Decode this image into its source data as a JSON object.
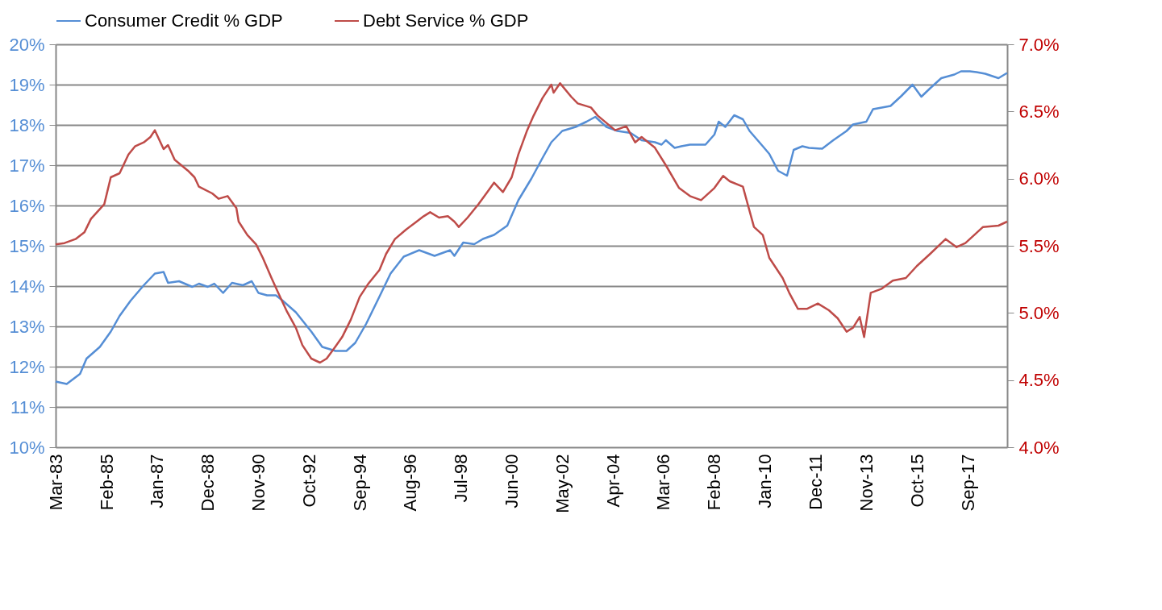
{
  "chart_data": {
    "type": "line",
    "legend": "top",
    "grid": "y",
    "line_style": "solid",
    "marker": "none",
    "xlim": [
      "1983-03",
      "2019-03"
    ],
    "xticks": [
      {
        "value": "1983-03",
        "label": "Mar-83"
      },
      {
        "value": "1985-02",
        "label": "Feb-85"
      },
      {
        "value": "1987-01",
        "label": "Jan-87"
      },
      {
        "value": "1988-12",
        "label": "Dec-88"
      },
      {
        "value": "1990-11",
        "label": "Nov-90"
      },
      {
        "value": "1992-10",
        "label": "Oct-92"
      },
      {
        "value": "1994-09",
        "label": "Sep-94"
      },
      {
        "value": "1996-08",
        "label": "Aug-96"
      },
      {
        "value": "1998-07",
        "label": "Jul-98"
      },
      {
        "value": "2000-06",
        "label": "Jun-00"
      },
      {
        "value": "2002-05",
        "label": "May-02"
      },
      {
        "value": "2004-04",
        "label": "Apr-04"
      },
      {
        "value": "2006-03",
        "label": "Mar-06"
      },
      {
        "value": "2008-02",
        "label": "Feb-08"
      },
      {
        "value": "2010-01",
        "label": "Jan-10"
      },
      {
        "value": "2011-12",
        "label": "Dec-11"
      },
      {
        "value": "2013-11",
        "label": "Nov-13"
      },
      {
        "value": "2015-10",
        "label": "Oct-15"
      },
      {
        "value": "2017-09",
        "label": "Sep-17"
      }
    ],
    "ylim": [
      10,
      20
    ],
    "yticks": [
      {
        "value": 10,
        "label": "10%"
      },
      {
        "value": 11,
        "label": "11%"
      },
      {
        "value": 12,
        "label": "12%"
      },
      {
        "value": 13,
        "label": "13%"
      },
      {
        "value": 14,
        "label": "14%"
      },
      {
        "value": 15,
        "label": "15%"
      },
      {
        "value": 16,
        "label": "16%"
      },
      {
        "value": 17,
        "label": "17%"
      },
      {
        "value": 18,
        "label": "18%"
      },
      {
        "value": 19,
        "label": "19%"
      },
      {
        "value": 20,
        "label": "20%"
      }
    ],
    "y2lim": [
      4.0,
      7.0
    ],
    "y2ticks": [
      {
        "value": 4.0,
        "label": "4.0%"
      },
      {
        "value": 4.5,
        "label": "4.5%"
      },
      {
        "value": 5.0,
        "label": "5.0%"
      },
      {
        "value": 5.5,
        "label": "5.5%"
      },
      {
        "value": 6.0,
        "label": "6.0%"
      },
      {
        "value": 6.5,
        "label": "6.5%"
      },
      {
        "value": 7.0,
        "label": "7.0%"
      }
    ],
    "series": [
      {
        "name": "Consumer Credit % GDP",
        "color": "#558ed5",
        "axis": "y",
        "x": [
          "1983-03",
          "1983-08",
          "1984-02",
          "1984-05",
          "1984-11",
          "1985-04",
          "1985-08",
          "1986-01",
          "1986-07",
          "1986-12",
          "1987-04",
          "1987-06",
          "1987-11",
          "1988-05",
          "1988-08",
          "1988-12",
          "1989-03",
          "1989-07",
          "1989-11",
          "1990-04",
          "1990-08",
          "1990-11",
          "1991-03",
          "1991-07",
          "1991-10",
          "1992-04",
          "1992-11",
          "1993-04",
          "1993-10",
          "1994-03",
          "1994-07",
          "1994-12",
          "1995-06",
          "1995-11",
          "1996-05",
          "1996-12",
          "1997-07",
          "1998-02",
          "1998-04",
          "1998-08",
          "1999-01",
          "1999-05",
          "1999-10",
          "2000-04",
          "2000-09",
          "2001-03",
          "2001-08",
          "2001-12",
          "2002-05",
          "2002-11",
          "2003-04",
          "2003-08",
          "2004-01",
          "2004-06",
          "2004-12",
          "2005-05",
          "2005-11",
          "2006-02",
          "2006-04",
          "2006-08",
          "2006-11",
          "2007-03",
          "2007-10",
          "2008-02",
          "2008-04",
          "2008-07",
          "2008-11",
          "2009-03",
          "2009-06",
          "2009-12",
          "2010-03",
          "2010-07",
          "2010-11",
          "2011-02",
          "2011-06",
          "2011-09",
          "2012-03",
          "2012-08",
          "2013-02",
          "2013-05",
          "2013-11",
          "2014-02",
          "2014-10",
          "2015-03",
          "2015-08",
          "2015-12",
          "2016-04",
          "2016-09",
          "2017-03",
          "2017-06",
          "2017-10",
          "2018-01",
          "2018-05",
          "2018-11",
          "2019-03"
        ],
        "values": [
          11.63,
          11.57,
          11.82,
          12.2,
          12.49,
          12.87,
          13.26,
          13.64,
          14.02,
          14.31,
          14.35,
          14.08,
          14.12,
          13.98,
          14.06,
          13.98,
          14.06,
          13.83,
          14.08,
          14.02,
          14.12,
          13.83,
          13.77,
          13.77,
          13.64,
          13.35,
          12.87,
          12.49,
          12.39,
          12.39,
          12.59,
          13.07,
          13.74,
          14.31,
          14.73,
          14.89,
          14.75,
          14.89,
          14.75,
          15.08,
          15.04,
          15.17,
          15.27,
          15.5,
          16.13,
          16.67,
          17.18,
          17.57,
          17.85,
          17.95,
          18.08,
          18.2,
          17.95,
          17.85,
          17.8,
          17.62,
          17.57,
          17.51,
          17.62,
          17.43,
          17.47,
          17.51,
          17.51,
          17.76,
          18.08,
          17.95,
          18.24,
          18.14,
          17.85,
          17.47,
          17.28,
          16.86,
          16.74,
          17.38,
          17.47,
          17.43,
          17.41,
          17.62,
          17.85,
          18.01,
          18.08,
          18.39,
          18.47,
          18.72,
          19.0,
          18.7,
          18.91,
          19.16,
          19.25,
          19.33,
          19.33,
          19.31,
          19.27,
          19.16,
          19.29
        ]
      },
      {
        "name": "Debt Service % GDP",
        "color": "#be4b48",
        "axis": "y2",
        "x": [
          "1983-03",
          "1983-07",
          "1983-12",
          "1984-04",
          "1984-07",
          "1985-01",
          "1985-04",
          "1985-08",
          "1985-12",
          "1986-03",
          "1986-07",
          "1986-10",
          "1986-12",
          "1987-04",
          "1987-06",
          "1987-09",
          "1988-03",
          "1988-06",
          "1988-08",
          "1989-02",
          "1989-05",
          "1989-09",
          "1990-01",
          "1990-02",
          "1990-06",
          "1990-10",
          "1991-01",
          "1991-05",
          "1991-08",
          "1991-12",
          "1992-04",
          "1992-07",
          "1992-11",
          "1993-03",
          "1993-06",
          "1993-10",
          "1994-01",
          "1994-05",
          "1994-09",
          "1995-01",
          "1995-06",
          "1995-09",
          "1996-01",
          "1996-06",
          "1996-10",
          "1997-02",
          "1997-05",
          "1997-09",
          "1998-01",
          "1998-04",
          "1998-06",
          "1998-10",
          "1999-03",
          "1999-07",
          "1999-10",
          "2000-02",
          "2000-06",
          "2000-09",
          "2001-01",
          "2001-04",
          "2001-08",
          "2001-12",
          "2002-01",
          "2002-04",
          "2002-09",
          "2002-12",
          "2003-06",
          "2003-09",
          "2004-05",
          "2004-10",
          "2005-02",
          "2005-05",
          "2005-11",
          "2006-04",
          "2006-10",
          "2007-03",
          "2007-08",
          "2008-02",
          "2008-06",
          "2008-09",
          "2009-03",
          "2009-08",
          "2009-12",
          "2010-03",
          "2010-09",
          "2010-12",
          "2011-04",
          "2011-08",
          "2012-01",
          "2012-06",
          "2012-10",
          "2013-02",
          "2013-05",
          "2013-08",
          "2013-10",
          "2014-01",
          "2014-06",
          "2014-11",
          "2015-05",
          "2015-10",
          "2016-04",
          "2016-11",
          "2017-04",
          "2017-08",
          "2017-12",
          "2018-04",
          "2018-11",
          "2019-03"
        ],
        "values": [
          5.51,
          5.52,
          5.55,
          5.6,
          5.7,
          5.81,
          6.01,
          6.04,
          6.18,
          6.24,
          6.27,
          6.31,
          6.36,
          6.22,
          6.25,
          6.14,
          6.06,
          6.01,
          5.94,
          5.89,
          5.85,
          5.87,
          5.78,
          5.68,
          5.58,
          5.51,
          5.41,
          5.26,
          5.15,
          5.01,
          4.89,
          4.76,
          4.66,
          4.63,
          4.66,
          4.75,
          4.82,
          4.95,
          5.12,
          5.22,
          5.32,
          5.44,
          5.55,
          5.62,
          5.67,
          5.72,
          5.75,
          5.71,
          5.72,
          5.68,
          5.64,
          5.71,
          5.81,
          5.9,
          5.97,
          5.9,
          6.01,
          6.18,
          6.36,
          6.47,
          6.6,
          6.7,
          6.64,
          6.71,
          6.61,
          6.56,
          6.53,
          6.47,
          6.36,
          6.39,
          6.27,
          6.31,
          6.23,
          6.1,
          5.93,
          5.87,
          5.84,
          5.93,
          6.02,
          5.98,
          5.94,
          5.64,
          5.58,
          5.41,
          5.26,
          5.15,
          5.03,
          5.03,
          5.07,
          5.02,
          4.96,
          4.86,
          4.89,
          4.97,
          4.82,
          5.15,
          5.18,
          5.24,
          5.26,
          5.35,
          5.44,
          5.55,
          5.49,
          5.52,
          5.58,
          5.64,
          5.65,
          5.68
        ]
      }
    ]
  }
}
